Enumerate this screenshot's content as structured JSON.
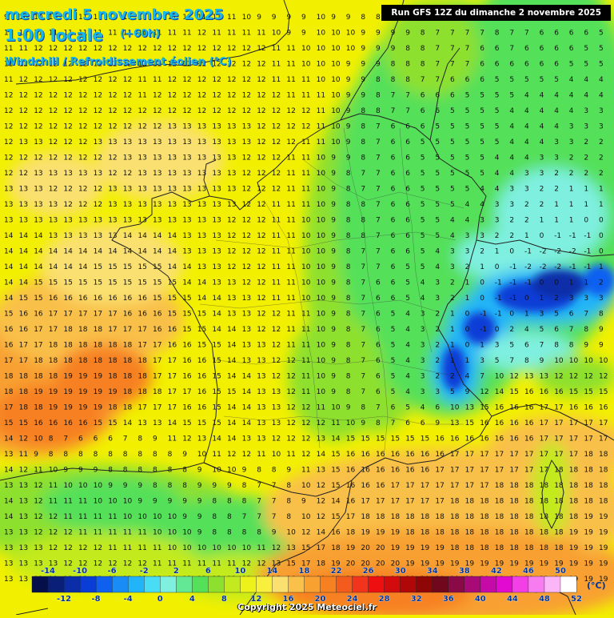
{
  "title": {
    "date": "mercredi 5 novembre 2025",
    "time": "1:00 locale",
    "offset": "(+60h)",
    "variable": "Windchill / Refroidissement éolien (°C)"
  },
  "run_label": "Run GFS 12Z du dimanche 2 novembre 2025",
  "copyright": "Copyright 2025 Meteociel.fr",
  "legend": {
    "unit": "(°C)",
    "top_labels": [
      "-14",
      "-10",
      "-6",
      "-2",
      "2",
      "6",
      "10",
      "14",
      "18",
      "22",
      "26",
      "30",
      "34",
      "38",
      "42",
      "46",
      "50"
    ],
    "bottom_labels": [
      "-12",
      "-8",
      "-4",
      "0",
      "4",
      "8",
      "12",
      "16",
      "20",
      "24",
      "28",
      "32",
      "36",
      "40",
      "44",
      "48",
      "52"
    ],
    "colors": [
      "#05104a",
      "#0a1f78",
      "#0b2ea8",
      "#0a3dd6",
      "#1060f0",
      "#1a8cf5",
      "#22b4f8",
      "#49dcf5",
      "#7ff0e0",
      "#63e896",
      "#55e05a",
      "#8ee02e",
      "#c2ea1e",
      "#ecf21a",
      "#f8f03c",
      "#fae070",
      "#f9c04a",
      "#f8a030",
      "#f78020",
      "#f45c1e",
      "#f2341c",
      "#ee1010",
      "#d20c0c",
      "#b00808",
      "#8e0606",
      "#70071c",
      "#8a0a48",
      "#a80a78",
      "#c60aa8",
      "#e20ad0",
      "#f240e6",
      "#f67cf0",
      "#fab6f6",
      "#ffffff"
    ]
  },
  "field": {
    "note_rows": [
      "9 10 10 10 11 11 11 11 11 11 11 11 11 11 11 11 10 9 9 9 9 10 9 9 8 8 8 8 8 8 7 7 7 8 7 7 6 7 6 6 6",
      "11 11 11 11 11 11 11 11 11 11 11 11 11 12 11 11 11 11 10 9 9 10 10 10 9 9 9 9 8 7 7 7 7 8 7 7 6 6 6 6 5",
      "11 11 12 12 12 12 12 12 12 12 12 12 12 12 12 12 12 12 11 11 10 10 10 10 9 9 9 8 8 7 7 7 6 6 7 6 6 6 6 5 5",
      "11 12 12 12 12 12 12 12 12 12 12 12 12 12 12 12 12 12 11 11 10 10 10 9 9 9 8 8 8 7 7 7 6 6 6 6 6 6 5 5 5",
      "11 12 12 12 12 12 12 12 12 11 11 12 12 12 12 12 12 12 11 11 11 10 10 9 9 8 8 8 7 7 6 6 6 5 5 5 5 5 4 4 4",
      "12 12 12 12 12 12 12 12 12 11 12 12 12 12 12 12 12 12 12 11 11 11 10 9 9 8 7 7 6 6 6 5 5 5 5 4 4 4 4 4 4",
      "12 12 12 12 12 12 12 12 12 12 12 12 12 12 12 12 12 12 12 12 12 11 10 9 8 8 7 7 6 6 5 5 5 5 4 4 4 4 4 3 3",
      "12 12 12 12 12 12 12 12 12 12 12 13 13 13 13 13 13 12 12 12 12 11 10 9 8 7 6 6 6 5 5 5 5 5 4 4 4 4 3 3 3",
      "12 13 13 12 12 12 13 13 13 13 13 13 13 13 13 13 13 12 12 12 11 11 10 9 8 7 6 6 5 5 5 5 5 5 4 4 4 3 3 2 2",
      "12 12 12 12 12 12 12 12 13 13 13 13 13 13 13 13 12 12 12 11 11 10 9 9 8 7 6 6 5 5 5 5 5 4 4 4 3 3 2 2 2",
      "12 12 13 13 13 13 13 12 12 13 13 13 13 13 13 13 12 12 12 11 11 10 9 8 7 7 6 6 5 5 5 5 5 4 4 3 3 2 2 2 2",
      "13 13 13 12 12 12 12 13 13 13 13 13 13 13 13 13 12 12 12 11 11 10 9 8 7 7 6 6 5 5 5 5 4 4 3 3 2 2 1 1 1",
      "13 13 13 13 12 12 12 13 13 13 13 13 13 13 13 13 12 12 11 11 11 10 9 8 8 7 6 6 5 5 5 4 4 3 3 2 2 1 1 1 1",
      "13 13 13 13 13 13 13 13 13 13 13 13 13 13 13 12 12 12 11 11 10 10 9 8 8 7 6 6 5 5 4 4 3 3 2 2 1 1 1 0 0",
      "14 14 14 13 13 13 13 13 14 14 14 14 13 13 13 12 12 12 11 11 10 10 9 8 8 7 6 6 5 5 4 3 3 2 2 1 0 -1 -1 -1 0",
      "14 14 14 14 14 14 14 14 14 14 14 14 13 13 13 12 12 12 11 11 10 10 9 8 7 7 6 6 5 4 3 3 2 1 0 -1 -2 -2 -2 -1 0",
      "14 14 14 14 14 14 15 15 15 15 15 14 14 13 13 12 12 12 11 11 10 10 9 8 7 7 6 5 5 4 3 2 1 0 -1 -2 -2 -2 -1 -1 1",
      "14 14 15 15 15 15 15 15 15 15 15 15 14 14 13 13 12 12 11 11 10 10 9 8 7 6 6 5 4 3 2 1 0 -1 -1 -1 0 0 1 1 2",
      "14 15 15 16 16 16 16 16 16 16 15 15 15 14 14 13 13 12 11 11 10 10 9 8 7 6 6 5 4 3 2 1 0 -1 -1 0 1 2 3 3 3",
      "15 16 16 17 17 17 17 17 16 16 16 15 15 15 14 13 13 12 12 11 11 10 9 8 7 6 5 4 3 2 1 0 -1 -1 0 1 3 5 6 7 8",
      "16 16 17 17 18 18 18 17 17 17 16 16 15 15 14 14 13 12 12 11 11 10 9 8 7 6 5 4 3 2 1 0 -1 0 2 4 5 6 7 8 9",
      "16 17 17 18 18 18 18 18 18 17 17 16 16 15 15 14 13 13 12 11 11 10 9 8 7 6 5 4 3 2 1 0 1 3 5 6 7 8 8 9 9",
      "17 17 18 18 18 18 18 18 18 18 17 17 16 16 15 14 13 13 12 12 11 10 9 8 7 6 5 4 3 2 1 1 3 5 7 8 9 10 10 10 10",
      "18 18 18 18 19 19 19 18 18 18 17 17 16 16 15 14 14 13 12 12 11 10 9 8 7 6 5 4 3 2 2 4 7 10 12 13 13 12 12 12 12",
      "18 18 19 19 19 19 19 19 18 18 18 17 17 16 15 15 14 13 13 12 11 10 9 8 7 6 5 4 3 3 5 9 12 14 15 16 16 16 15 15 15",
      "17 18 18 19 19 19 19 18 18 17 17 17 16 16 15 14 14 13 13 12 12 11 10 9 8 7 6 5 4 6 10 13 15 16 16 16 17 17 16 16 16",
      "15 15 16 16 16 16 15 15 14 13 13 14 15 15 15 14 14 13 13 12 12 12 11 10 9 8 7 6 6 9 13 15 16 16 16 16 17 17 17 17 17",
      "14 12 10 8 7 6 6 6 7 8 9 11 12 13 14 14 13 13 12 12 12 13 14 15 15 15 15 15 15 16 16 16 16 16 16 16 17 17 17 17 17",
      "13 11 9 8 8 8 8 8 8 8 8 8 9 10 11 12 12 11 10 11 12 14 15 16 16 16 16 16 16 16 17 17 17 17 17 17 17 17 17 18 18",
      "14 12 11 10 9 9 9 8 8 8 8 8 8 9 10 10 9 8 8 9 11 13 15 16 16 16 16 16 16 17 17 17 17 17 17 17 17 18 18 18 18",
      "13 13 12 11 10 10 10 9 9 9 8 8 8 9 9 9 8 7 7 8 10 12 15 16 16 16 17 17 17 17 17 17 17 18 18 18 18 18 18 18 18",
      "14 13 12 11 11 11 10 10 10 9 9 9 9 9 8 8 8 7 7 8 9 12 14 16 17 17 17 17 17 17 18 18 18 18 18 18 18 18 18 18 18",
      "14 13 12 12 11 11 11 11 10 10 10 10 9 9 8 8 7 7 7 8 10 12 15 17 18 18 18 18 18 18 18 18 18 18 18 18 18 18 18 19 19",
      "13 13 12 12 12 11 11 11 11 11 10 10 10 9 8 8 8 8 9 10 12 14 16 18 19 19 19 18 18 18 18 18 18 18 18 18 18 18 19 19 19",
      "13 13 13 12 12 12 12 11 11 11 11 10 10 10 10 10 10 11 12 13 15 17 18 19 20 20 19 19 19 19 18 18 18 18 18 18 18 18 19 19 19",
      "13 13 13 13 12 12 12 12 12 12 11 11 11 11 11 11 12 12 13 15 17 18 19 20 20 20 20 19 19 19 19 19 19 19 19 19 19 19 19 19 19",
      "13 13 13 13 13 12 12 12 12 12 12 12 12 12 12 13 13 14 15 16 18 19 20 20 21 21 20 20 20 20 19 19 19 19 19 19 19 19 19 19 19"
    ]
  }
}
